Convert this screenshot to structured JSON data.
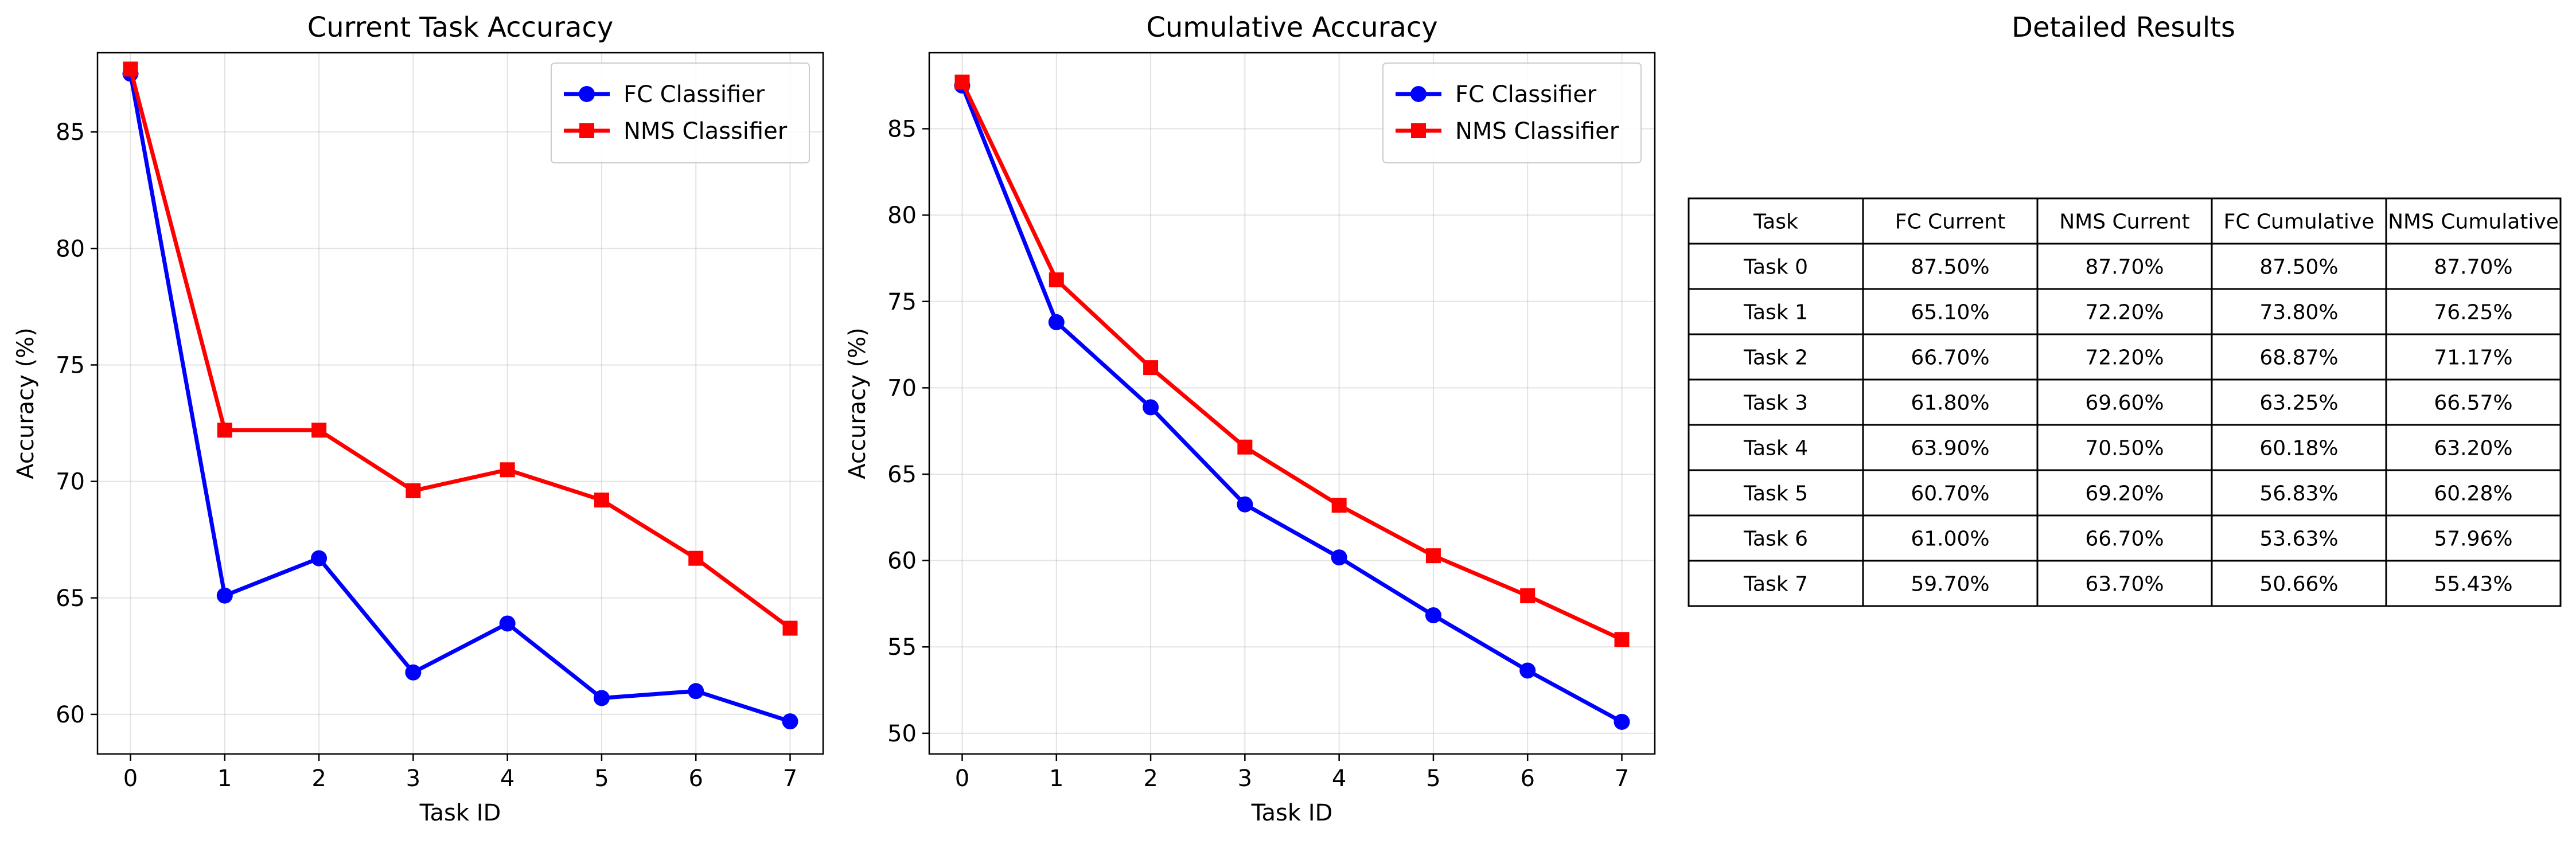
{
  "colors": {
    "fc": "#0000ff",
    "nms": "#ff0000",
    "grid": "#b0b0b0",
    "axis": "#000000"
  },
  "chart_data": [
    {
      "type": "line",
      "title": "Current Task Accuracy",
      "xlabel": "Task ID",
      "ylabel": "Accuracy (%)",
      "x": [
        0,
        1,
        2,
        3,
        4,
        5,
        6,
        7
      ],
      "xlim": [
        -0.35,
        7.35
      ],
      "ylim": [
        58.3,
        88.4
      ],
      "yticks": [
        60,
        65,
        70,
        75,
        80,
        85
      ],
      "grid": true,
      "legend": "top-right",
      "series": [
        {
          "name": "FC Classifier",
          "marker": "circle",
          "color": "#0000ff",
          "values": [
            87.5,
            65.1,
            66.7,
            61.8,
            63.9,
            60.7,
            61.0,
            59.7
          ]
        },
        {
          "name": "NMS Classifier",
          "marker": "square",
          "color": "#ff0000",
          "values": [
            87.7,
            72.2,
            72.2,
            69.6,
            70.5,
            69.2,
            66.7,
            63.7
          ]
        }
      ]
    },
    {
      "type": "line",
      "title": "Cumulative Accuracy",
      "xlabel": "Task ID",
      "ylabel": "Accuracy (%)",
      "x": [
        0,
        1,
        2,
        3,
        4,
        5,
        6,
        7
      ],
      "xlim": [
        -0.35,
        7.35
      ],
      "ylim": [
        48.8,
        89.4
      ],
      "yticks": [
        50,
        55,
        60,
        65,
        70,
        75,
        80,
        85
      ],
      "grid": true,
      "legend": "top-right",
      "series": [
        {
          "name": "FC Classifier",
          "marker": "circle",
          "color": "#0000ff",
          "values": [
            87.5,
            73.8,
            68.87,
            63.25,
            60.18,
            56.83,
            53.63,
            50.66
          ]
        },
        {
          "name": "NMS Classifier",
          "marker": "square",
          "color": "#ff0000",
          "values": [
            87.7,
            76.25,
            71.17,
            66.57,
            63.2,
            60.28,
            57.96,
            55.43
          ]
        }
      ]
    },
    {
      "type": "table",
      "title": "Detailed Results",
      "columns": [
        "Task",
        "FC Current",
        "NMS Current",
        "FC Cumulative",
        "NMS Cumulative"
      ],
      "rows": [
        [
          "Task 0",
          "87.50%",
          "87.70%",
          "87.50%",
          "87.70%"
        ],
        [
          "Task 1",
          "65.10%",
          "72.20%",
          "73.80%",
          "76.25%"
        ],
        [
          "Task 2",
          "66.70%",
          "72.20%",
          "68.87%",
          "71.17%"
        ],
        [
          "Task 3",
          "61.80%",
          "69.60%",
          "63.25%",
          "66.57%"
        ],
        [
          "Task 4",
          "63.90%",
          "70.50%",
          "60.18%",
          "63.20%"
        ],
        [
          "Task 5",
          "60.70%",
          "69.20%",
          "56.83%",
          "60.28%"
        ],
        [
          "Task 6",
          "61.00%",
          "66.70%",
          "53.63%",
          "57.96%"
        ],
        [
          "Task 7",
          "59.70%",
          "63.70%",
          "50.66%",
          "55.43%"
        ]
      ]
    }
  ]
}
